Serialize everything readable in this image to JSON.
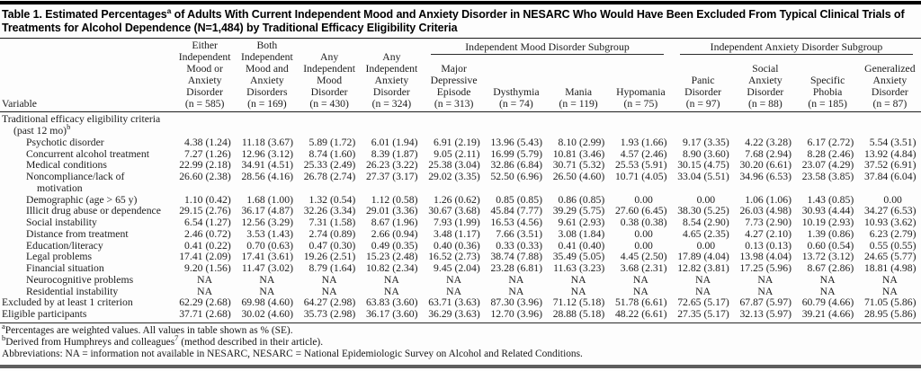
{
  "colors": {
    "background": "#fdfdfd",
    "text": "#1c1c1c",
    "rule": "#1f1f1f",
    "top_bar": "#000000",
    "bottom_bar": "#5e5e5e"
  },
  "title": {
    "pre": "Table 1. Estimated Percentages",
    "sup": "a",
    "post": " of Adults With Current Independent Mood and Anxiety Disorder in NESARC Who Would Have Been Excluded From Typical Clinical Trials of Treatments for Alcohol Dependence (N=1,484) by Traditional Efficacy Eligibility Criteria"
  },
  "table": {
    "variable_header": "Variable",
    "group_headers": [
      {
        "label": "Independent Mood Disorder Subgroup",
        "span": 4
      },
      {
        "label": "Independent Anxiety Disorder Subgroup",
        "span": 4
      }
    ],
    "columns": [
      "Either\nIndependent\nMood or\nAnxiety\nDisorder\n(n = 585)",
      "Both\nIndependent\nMood and\nAnxiety\nDisorders\n(n = 169)",
      "Any\nIndependent\nMood\nDisorder\n(n = 430)",
      "Any\nIndependent\nAnxiety\nDisorder\n(n = 324)",
      "Major\nDepressive\nEpisode\n(n = 313)",
      "Dysthymia\n(n = 74)",
      "Mania\n(n = 119)",
      "Hypomania\n(n = 75)",
      "Panic\nDisorder\n(n = 97)",
      "Social\nAnxiety\nDisorder\n(n = 88)",
      "Specific\nPhobia\n(n = 185)",
      "Generalized\nAnxiety\nDisorder\n(n = 87)"
    ],
    "rows": [
      {
        "label": "Traditional efficacy eligibility criteria",
        "label2": "(past 12 mo)",
        "label2_sup": "b",
        "label2_class": "l2sec",
        "indent": 0,
        "cells": []
      },
      {
        "label": "Psychotic disorder",
        "indent": 1,
        "cells": [
          "4.38 (1.24)",
          "11.18 (3.67)",
          "5.89 (1.72)",
          "6.01 (1.94)",
          "6.91 (2.19)",
          "13.96 (5.43)",
          "8.10 (2.99)",
          "1.93 (1.66)",
          "9.17 (3.35)",
          "4.22 (3.28)",
          "6.17 (2.72)",
          "5.54 (3.51)"
        ]
      },
      {
        "label": "Concurrent alcohol treatment",
        "indent": 1,
        "cells": [
          "7.27 (1.26)",
          "12.96 (3.12)",
          "8.74 (1.60)",
          "8.39 (1.87)",
          "9.05 (2.11)",
          "16.99 (5.79)",
          "10.81 (3.46)",
          "4.57 (2.46)",
          "8.90 (3.60)",
          "7.68 (2.94)",
          "8.28 (2.46)",
          "13.92 (4.84)"
        ]
      },
      {
        "label": "Medical conditions",
        "indent": 1,
        "cells": [
          "22.99 (2.18)",
          "34.91 (4.51)",
          "25.33 (2.49)",
          "26.23 (3.22)",
          "25.38 (3.04)",
          "32.86 (6.84)",
          "30.71 (5.32)",
          "25.53 (5.91)",
          "30.15 (4.75)",
          "30.20 (6.61)",
          "23.07 (4.29)",
          "37.52 (6.91)"
        ]
      },
      {
        "label": "Noncompliance/lack of",
        "label2": "motivation",
        "label2_class": "l2sub",
        "indent": 1,
        "cells": [
          "26.60 (2.38)",
          "28.56 (4.16)",
          "26.78 (2.74)",
          "27.37 (3.17)",
          "29.02 (3.35)",
          "52.50 (6.96)",
          "26.50 (4.60)",
          "10.71 (4.05)",
          "33.04 (5.51)",
          "34.96 (6.53)",
          "23.58 (3.85)",
          "37.84 (6.04)"
        ]
      },
      {
        "label": "Demographic (age > 65 y)",
        "indent": 1,
        "cells": [
          "1.10 (0.42)",
          "1.68 (1.00)",
          "1.32 (0.54)",
          "1.12 (0.58)",
          "1.26 (0.62)",
          "0.85 (0.85)",
          "0.86 (0.85)",
          "0.00",
          "0.00",
          "1.06 (1.06)",
          "1.43 (0.85)",
          "0.00"
        ]
      },
      {
        "label": "Illicit drug abuse or dependence",
        "indent": 1,
        "cells": [
          "29.15 (2.76)",
          "36.17 (4.87)",
          "32.26 (3.34)",
          "29.01 (3.36)",
          "30.67 (3.68)",
          "45.84 (7.77)",
          "39.29 (5.75)",
          "27.60 (6.45)",
          "38.30 (5.25)",
          "26.03 (4.98)",
          "30.93 (4.44)",
          "34.27 (6.53)"
        ]
      },
      {
        "label": "Social instability",
        "indent": 1,
        "cells": [
          "6.54 (1.27)",
          "12.56 (3.29)",
          "7.31 (1.58)",
          "8.67 (1.96)",
          "7.93 (1.99)",
          "16.53 (4.56)",
          "9.61 (2.93)",
          "0.38 (0.38)",
          "8.54 (2.90)",
          "7.73 (2.90)",
          "10.19 (2.93)",
          "10.93 (3.62)"
        ]
      },
      {
        "label": "Distance from treatment",
        "indent": 1,
        "cells": [
          "2.46 (0.72)",
          "3.53 (1.43)",
          "2.74 (0.89)",
          "2.66 (0.94)",
          "3.48 (1.17)",
          "7.66 (3.51)",
          "3.08 (1.84)",
          "0.00",
          "4.65 (2.35)",
          "4.27 (2.10)",
          "1.39 (0.86)",
          "6.23 (2.79)"
        ]
      },
      {
        "label": "Education/literacy",
        "indent": 1,
        "cells": [
          "0.41 (0.22)",
          "0.70 (0.63)",
          "0.47 (0.30)",
          "0.49 (0.35)",
          "0.40 (0.36)",
          "0.33 (0.33)",
          "0.41 (0.40)",
          "0.00",
          "0.00",
          "0.13 (0.13)",
          "0.60 (0.54)",
          "0.55 (0.55)"
        ]
      },
      {
        "label": "Legal problems",
        "indent": 1,
        "cells": [
          "17.41 (2.09)",
          "17.41 (3.61)",
          "19.26 (2.51)",
          "15.23 (2.48)",
          "16.52 (2.73)",
          "38.74 (7.88)",
          "35.49 (5.05)",
          "4.45 (2.50)",
          "17.89 (4.04)",
          "13.98 (4.04)",
          "13.72 (3.12)",
          "24.65 (5.77)"
        ]
      },
      {
        "label": "Financial situation",
        "indent": 1,
        "cells": [
          "9.20 (1.56)",
          "11.47 (3.02)",
          "8.79 (1.64)",
          "10.82 (2.34)",
          "9.45 (2.04)",
          "23.28 (6.81)",
          "11.63 (3.23)",
          "3.68 (2.31)",
          "12.82 (3.81)",
          "17.25 (5.96)",
          "8.67 (2.86)",
          "18.81 (4.98)"
        ]
      },
      {
        "label": "Neurocognitive problems",
        "indent": 1,
        "cells": [
          "NA",
          "NA",
          "NA",
          "NA",
          "NA",
          "NA",
          "NA",
          "NA",
          "NA",
          "NA",
          "NA",
          "NA"
        ]
      },
      {
        "label": "Residential instability",
        "indent": 1,
        "cells": [
          "NA",
          "NA",
          "NA",
          "NA",
          "NA",
          "NA",
          "NA",
          "NA",
          "NA",
          "NA",
          "NA",
          "NA"
        ]
      },
      {
        "label": "Excluded by at least 1 criterion",
        "indent": 0,
        "cells": [
          "62.29 (2.68)",
          "69.98 (4.60)",
          "64.27 (2.98)",
          "63.83 (3.60)",
          "63.71 (3.63)",
          "87.30 (3.96)",
          "71.12 (5.18)",
          "51.78 (6.61)",
          "72.65 (5.17)",
          "67.87 (5.97)",
          "60.79 (4.66)",
          "71.05 (5.86)"
        ]
      },
      {
        "label": "Eligible participants",
        "indent": 0,
        "cells": [
          "37.71 (2.68)",
          "30.02 (4.60)",
          "35.73 (2.98)",
          "36.17 (3.60)",
          "36.29 (3.63)",
          "12.70 (3.96)",
          "28.88 (5.18)",
          "48.22 (6.61)",
          "27.35 (5.17)",
          "32.13 (5.97)",
          "39.21 (4.66)",
          "28.95 (5.86)"
        ]
      }
    ]
  },
  "footnotes": {
    "a_sup": "a",
    "a_text": "Percentages are weighted values. All values in table shown as % (SE).",
    "b_sup": "b",
    "b_pre": "Derived from Humphreys and colleagues",
    "b_sup2": "7",
    "b_post": " (method described in their article).",
    "abbr": "Abbreviations: NA = information not available in NESARC, NESARC = National Epidemiologic Survey on Alcohol and Related Conditions."
  }
}
